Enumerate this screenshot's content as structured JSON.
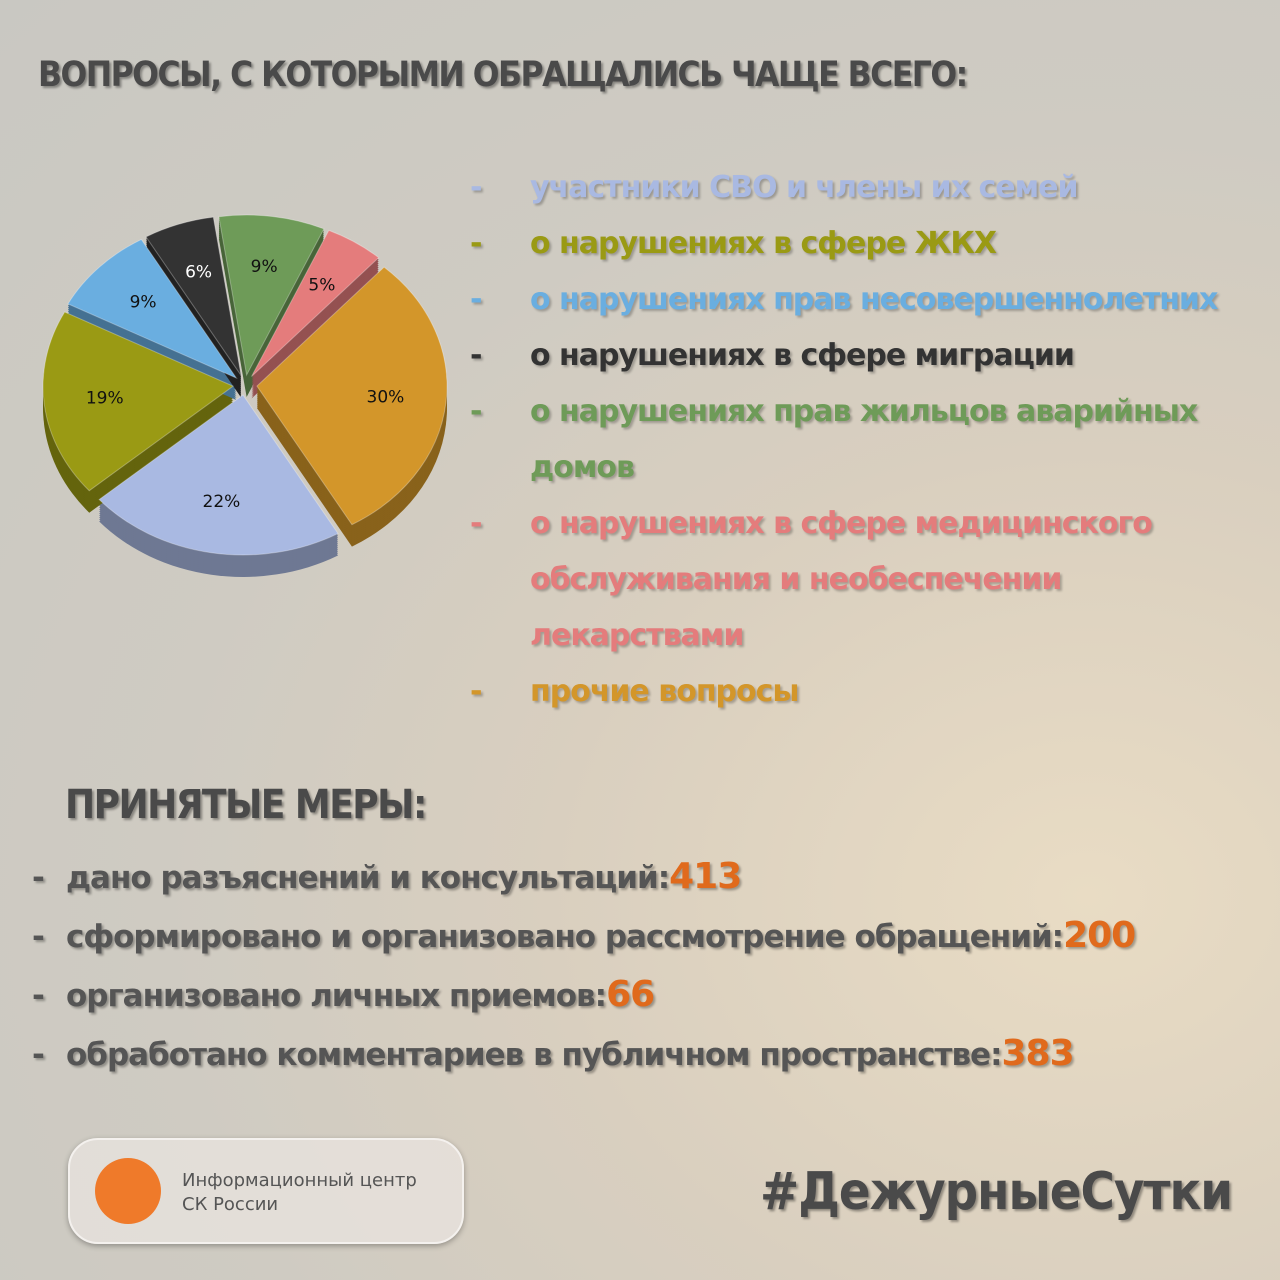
{
  "chart_data": {
    "type": "pie",
    "title": "ВОПРОСЫ, С КОТОРЫМИ ОБРАЩАЛИСЬ ЧАЩЕ ВСЕГО:",
    "categories": [
      "участники СВО и члены их семей",
      "о нарушениях в сфере ЖКХ",
      "о нарушениях прав несовершеннолетних",
      "о нарушениях в сфере миграции",
      "о нарушениях прав жильцов аварийных домов",
      "о нарушениях в сфере медицинского обслуживания и необеспечении лекарствами",
      "прочие вопросы"
    ],
    "values": [
      22,
      19,
      9,
      6,
      9,
      5,
      30
    ],
    "value_labels": [
      "22%",
      "19%",
      "9%",
      "6%",
      "9%",
      "5%",
      "30%"
    ],
    "colors": [
      "#a9b9e2",
      "#9a9a14",
      "#6aaee0",
      "#333333",
      "#6e9b58",
      "#e47c7c",
      "#d3962a"
    ],
    "legend_marker": "-"
  },
  "measures": {
    "title": "ПРИНЯТЫЕ МЕРЫ:",
    "marker": "-",
    "items": [
      {
        "label": "дано разъяснений и консультаций:",
        "value": 413
      },
      {
        "label": "сформировано и организовано рассмотрение обращений:",
        "value": 200
      },
      {
        "label": "организовано личных приемов:",
        "value": 66
      },
      {
        "label": "обработано комментариев в публичном пространстве:",
        "value": 383
      }
    ]
  },
  "footer": {
    "org": [
      "Информационный центр",
      "СК России"
    ],
    "hashtag": "#ДежурныеСутки"
  }
}
